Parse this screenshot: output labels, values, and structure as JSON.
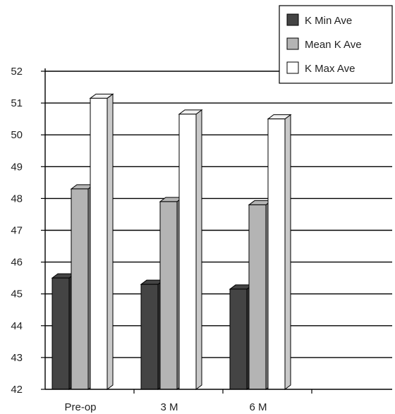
{
  "chart_data": {
    "type": "bar",
    "categories": [
      "Pre-op",
      "3 M",
      "6 M"
    ],
    "series": [
      {
        "name": "K Min Ave",
        "values": [
          45.5,
          45.3,
          45.15
        ],
        "color": "#444444"
      },
      {
        "name": "Mean K Ave",
        "values": [
          48.3,
          47.9,
          47.8
        ],
        "color": "#b4b4b4"
      },
      {
        "name": "K Max Ave",
        "values": [
          51.15,
          50.65,
          50.5
        ],
        "color": "#ffffff"
      }
    ],
    "ylim": [
      42,
      52
    ],
    "yticks": [
      "42",
      "43",
      "44",
      "45",
      "46",
      "47",
      "48",
      "49",
      "50",
      "51",
      "52"
    ],
    "grid": true,
    "legend_position": "top-right",
    "style": "3d-bar"
  }
}
